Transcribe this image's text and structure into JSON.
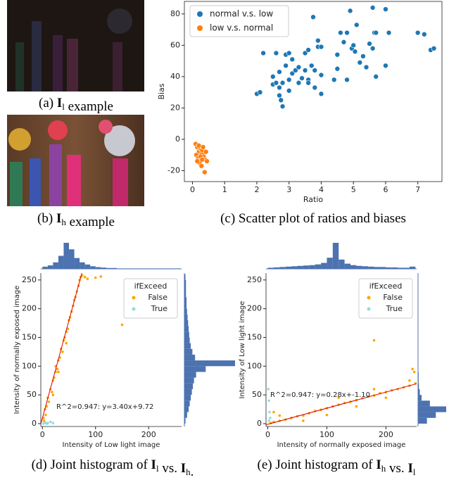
{
  "images": [
    {
      "caption": [
        "(a)",
        {
          "math": "I",
          "sub": "l"
        },
        "example"
      ]
    },
    {
      "caption": [
        "(b)",
        {
          "math": "I",
          "sub": "h"
        },
        "example"
      ]
    }
  ],
  "chart_data": [
    {
      "type": "scatter",
      "caption": [
        "(c) Scatter plot of ratios and biases"
      ],
      "x_label": "Ratio",
      "y_label": "Bias",
      "xlim": [
        -0.25,
        7.75
      ],
      "ylim": [
        -27,
        88
      ],
      "xticks": [
        0,
        1,
        2,
        3,
        4,
        5,
        6,
        7
      ],
      "yticks": [
        -20,
        0,
        20,
        40,
        60,
        80
      ],
      "legend": "upper left",
      "series": [
        {
          "name": "normal v.s. low",
          "color": "#1f77b4",
          "x": [
            2.0,
            2.1,
            2.2,
            2.5,
            2.6,
            2.7,
            2.7,
            2.75,
            2.8,
            2.8,
            2.9,
            2.9,
            3.0,
            3.0,
            3.1,
            3.1,
            3.2,
            3.3,
            3.3,
            3.4,
            3.5,
            3.6,
            3.6,
            3.7,
            3.75,
            3.8,
            3.8,
            3.9,
            3.9,
            4.0,
            4.0,
            3.6,
            3.5,
            4.5,
            4.5,
            4.6,
            4.7,
            4.8,
            4.8,
            4.9,
            4.95,
            5.0,
            5.05,
            5.1,
            5.2,
            5.3,
            5.4,
            5.5,
            5.6,
            5.6,
            5.65,
            5.7,
            5.7,
            6.0,
            6.0,
            6.1,
            7.0,
            7.2,
            7.4,
            7.5,
            2.5,
            2.6,
            2.7,
            3.0,
            4.4,
            4.0
          ],
          "values": [
            29,
            30,
            55,
            40,
            55,
            33,
            28,
            25,
            21,
            36,
            54,
            47,
            38,
            31,
            42,
            51,
            44,
            36,
            46,
            39,
            55,
            57,
            38,
            47,
            78,
            44,
            33,
            59,
            63,
            41,
            29,
            36,
            44,
            45,
            54,
            68,
            62,
            68,
            38,
            82,
            58,
            60,
            56,
            73,
            49,
            53,
            46,
            61,
            84,
            58,
            68,
            40,
            68,
            83,
            47,
            68,
            68,
            67,
            57,
            58,
            35,
            36,
            43,
            55,
            38,
            59
          ]
        },
        {
          "name": "low v.s. normal",
          "color": "#ff7f0e",
          "x": [
            0.1,
            0.15,
            0.2,
            0.12,
            0.18,
            0.25,
            0.3,
            0.22,
            0.28,
            0.35,
            0.4,
            0.3,
            0.45,
            0.38,
            0.2,
            0.25,
            0.33,
            0.15,
            0.42,
            0.3
          ],
          "values": [
            -3,
            -5,
            -8,
            -10,
            -12,
            -6,
            -9,
            -15,
            -17,
            -11,
            -13,
            -7,
            -14,
            -21,
            -4,
            -11,
            -5,
            -14,
            -8,
            -13
          ]
        }
      ]
    },
    {
      "type": "joint",
      "caption": [
        "(d) Joint histogram of",
        {
          "math": "I",
          "sub": "l"
        },
        "vs.",
        {
          "math": "I",
          "sub": "h"
        },
        "."
      ],
      "x_label": "Intensity of Low light image",
      "y_label": "Intensity of normally exposed image",
      "xlim": [
        -3,
        262
      ],
      "ylim": [
        -5,
        262
      ],
      "xticks": [
        0,
        100,
        200
      ],
      "yticks": [
        0,
        50,
        100,
        150,
        200,
        250
      ],
      "legend_title": "ifExceed",
      "legend": "upper right",
      "annotation": "R^2=0.947: y=3.40x+9.72",
      "fit": {
        "slope": 3.4,
        "intercept": 9.72,
        "color": "#dd0000"
      },
      "series": [
        {
          "name": "False",
          "color": "#ffa500",
          "x": [
            2,
            5,
            8,
            10,
            12,
            15,
            18,
            20,
            22,
            25,
            28,
            30,
            33,
            35,
            38,
            40,
            42,
            45,
            48,
            50,
            52,
            55,
            58,
            60,
            62,
            65,
            68,
            70,
            72,
            75,
            80,
            85,
            150,
            100,
            110,
            3,
            6,
            30,
            45,
            25,
            20
          ],
          "values": [
            10,
            25,
            30,
            45,
            38,
            60,
            55,
            75,
            80,
            90,
            95,
            110,
            115,
            130,
            125,
            145,
            150,
            160,
            165,
            180,
            185,
            195,
            205,
            215,
            220,
            230,
            240,
            250,
            255,
            258,
            255,
            252,
            172,
            254,
            256,
            5,
            15,
            90,
            140,
            100,
            50
          ]
        },
        {
          "name": "True",
          "color": "#99d8d8",
          "x": [
            5,
            10,
            15,
            20,
            2,
            8
          ],
          "values": [
            2,
            1,
            3,
            1,
            0,
            0
          ]
        }
      ],
      "hist_color": "#4c72b0",
      "top_hist": {
        "bins": [
          0,
          10,
          20,
          30,
          40,
          50,
          60,
          70,
          80,
          90,
          100,
          110,
          120,
          130,
          140,
          150,
          160,
          170,
          180,
          190,
          200,
          210,
          220,
          230,
          240,
          250,
          260
        ],
        "counts": [
          5,
          8,
          15,
          30,
          60,
          45,
          25,
          15,
          10,
          6,
          4,
          3,
          2,
          2,
          1,
          1,
          1,
          1,
          1,
          1,
          1,
          1,
          1,
          1,
          1,
          1
        ]
      },
      "right_hist": {
        "bins": [
          0,
          10,
          20,
          30,
          40,
          50,
          60,
          70,
          80,
          90,
          100,
          110,
          120,
          130,
          140,
          150,
          160,
          170,
          180,
          190,
          200,
          210,
          220,
          230,
          240,
          250,
          260
        ],
        "counts": [
          2,
          5,
          8,
          10,
          12,
          14,
          16,
          18,
          22,
          40,
          95,
          20,
          15,
          12,
          10,
          9,
          8,
          7,
          6,
          5,
          4,
          4,
          3,
          3,
          3,
          2
        ]
      }
    },
    {
      "type": "joint",
      "caption": [
        "(e) Joint histogram of",
        {
          "math": "I",
          "sub": "h"
        },
        "vs.",
        {
          "math": "I",
          "sub": "l"
        }
      ],
      "x_label": "Intensity of normally exposed image",
      "y_label": "Intensity of Low light image",
      "xlim": [
        -3,
        252
      ],
      "ylim": [
        -5,
        262
      ],
      "xticks": [
        0,
        100,
        200
      ],
      "yticks": [
        0,
        50,
        100,
        150,
        200,
        250
      ],
      "legend_title": "ifExceed",
      "legend": "upper right",
      "annotation": "R^2=0.947: y=0.28x+-1.10",
      "fit": {
        "slope": 0.28,
        "intercept": -1.1,
        "color": "#dd0000"
      },
      "series": [
        {
          "name": "False",
          "color": "#ffa500",
          "x": [
            5,
            10,
            20,
            30,
            40,
            50,
            60,
            70,
            80,
            90,
            100,
            110,
            120,
            130,
            140,
            150,
            160,
            170,
            180,
            190,
            200,
            210,
            220,
            230,
            240,
            250,
            60,
            100,
            150,
            200,
            120,
            180,
            240,
            245,
            248,
            20,
            180,
            10
          ],
          "values": [
            1,
            3,
            5,
            7,
            10,
            13,
            14,
            18,
            22,
            24,
            27,
            30,
            33,
            36,
            38,
            41,
            44,
            47,
            49,
            53,
            55,
            58,
            60,
            63,
            66,
            70,
            5,
            15,
            30,
            45,
            45,
            60,
            75,
            95,
            90,
            14,
            145,
            20
          ]
        },
        {
          "name": "True",
          "color": "#99d8d8",
          "x": [
            2,
            3,
            2,
            4,
            1
          ],
          "values": [
            5,
            20,
            40,
            10,
            60
          ]
        }
      ],
      "hist_color": "#4c72b0",
      "top_hist": {
        "bins": [
          0,
          10,
          20,
          30,
          40,
          50,
          60,
          70,
          80,
          90,
          100,
          110,
          120,
          130,
          140,
          150,
          160,
          170,
          180,
          190,
          200,
          210,
          220,
          230,
          240,
          250
        ],
        "counts": [
          3,
          4,
          5,
          6,
          7,
          8,
          9,
          10,
          12,
          16,
          30,
          70,
          25,
          14,
          10,
          8,
          7,
          6,
          5,
          5,
          4,
          4,
          3,
          3,
          6
        ]
      },
      "right_hist": {
        "bins": [
          0,
          10,
          20,
          30,
          40,
          50,
          60,
          70,
          80,
          90,
          100,
          110,
          120,
          130,
          140,
          150,
          160,
          170,
          180,
          190,
          200,
          210,
          220,
          230,
          240,
          250,
          260
        ],
        "counts": [
          30,
          60,
          95,
          40,
          12,
          6,
          3,
          2,
          2,
          1,
          1,
          1,
          1,
          1,
          1,
          1,
          1,
          1,
          1,
          1,
          1,
          1,
          1,
          1,
          1,
          1
        ]
      }
    }
  ]
}
